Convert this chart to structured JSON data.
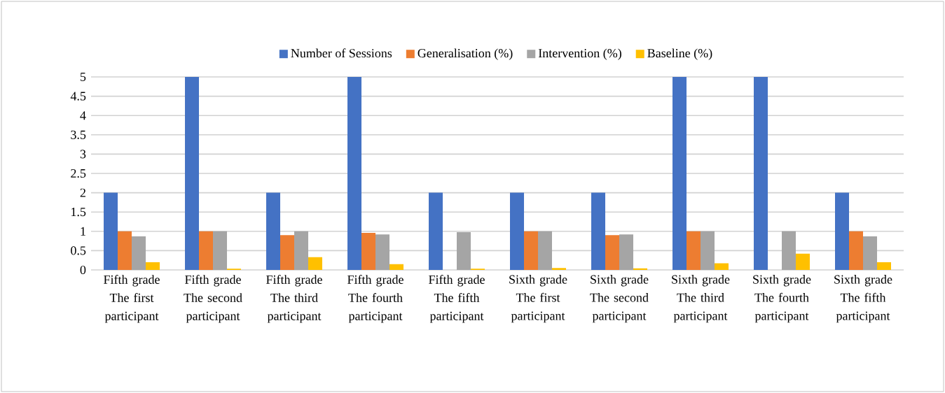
{
  "chart_data": {
    "type": "bar",
    "categories": [
      "Fifth grade The first participant",
      "Fifth grade The second participant",
      "Fifth grade The third participant",
      "Fifth grade The fourth participant",
      "Fifth grade The fifth participant",
      "Sixth grade The first participant",
      "Sixth grade The second participant",
      "Sixth grade The third participant",
      "Sixth grade The fourth participant",
      "Sixth grade The fifth participant"
    ],
    "series": [
      {
        "name": "Number of Sessions",
        "color": "#4472c4",
        "values": [
          2,
          5,
          2,
          5,
          2,
          2,
          2,
          5,
          5,
          2
        ]
      },
      {
        "name": "Generalisation (%)",
        "color": "#ed7d31",
        "values": [
          1,
          1,
          0.9,
          0.96,
          0,
          1,
          0.9,
          1,
          0,
          1
        ]
      },
      {
        "name": "Intervention (%)",
        "color": "#a5a5a5",
        "values": [
          0.87,
          1,
          1,
          0.92,
          0.98,
          1,
          0.92,
          1,
          1,
          0.87
        ]
      },
      {
        "name": "Baseline (%)",
        "color": "#ffc000",
        "values": [
          0.2,
          0.03,
          0.33,
          0.15,
          0.03,
          0.05,
          0.04,
          0.17,
          0.42,
          0.2
        ]
      }
    ],
    "ylim": [
      0,
      5
    ],
    "yticks": [
      0,
      0.5,
      1,
      1.5,
      2,
      2.5,
      3,
      3.5,
      4,
      4.5,
      5
    ],
    "grid": "y",
    "legend": "top"
  }
}
